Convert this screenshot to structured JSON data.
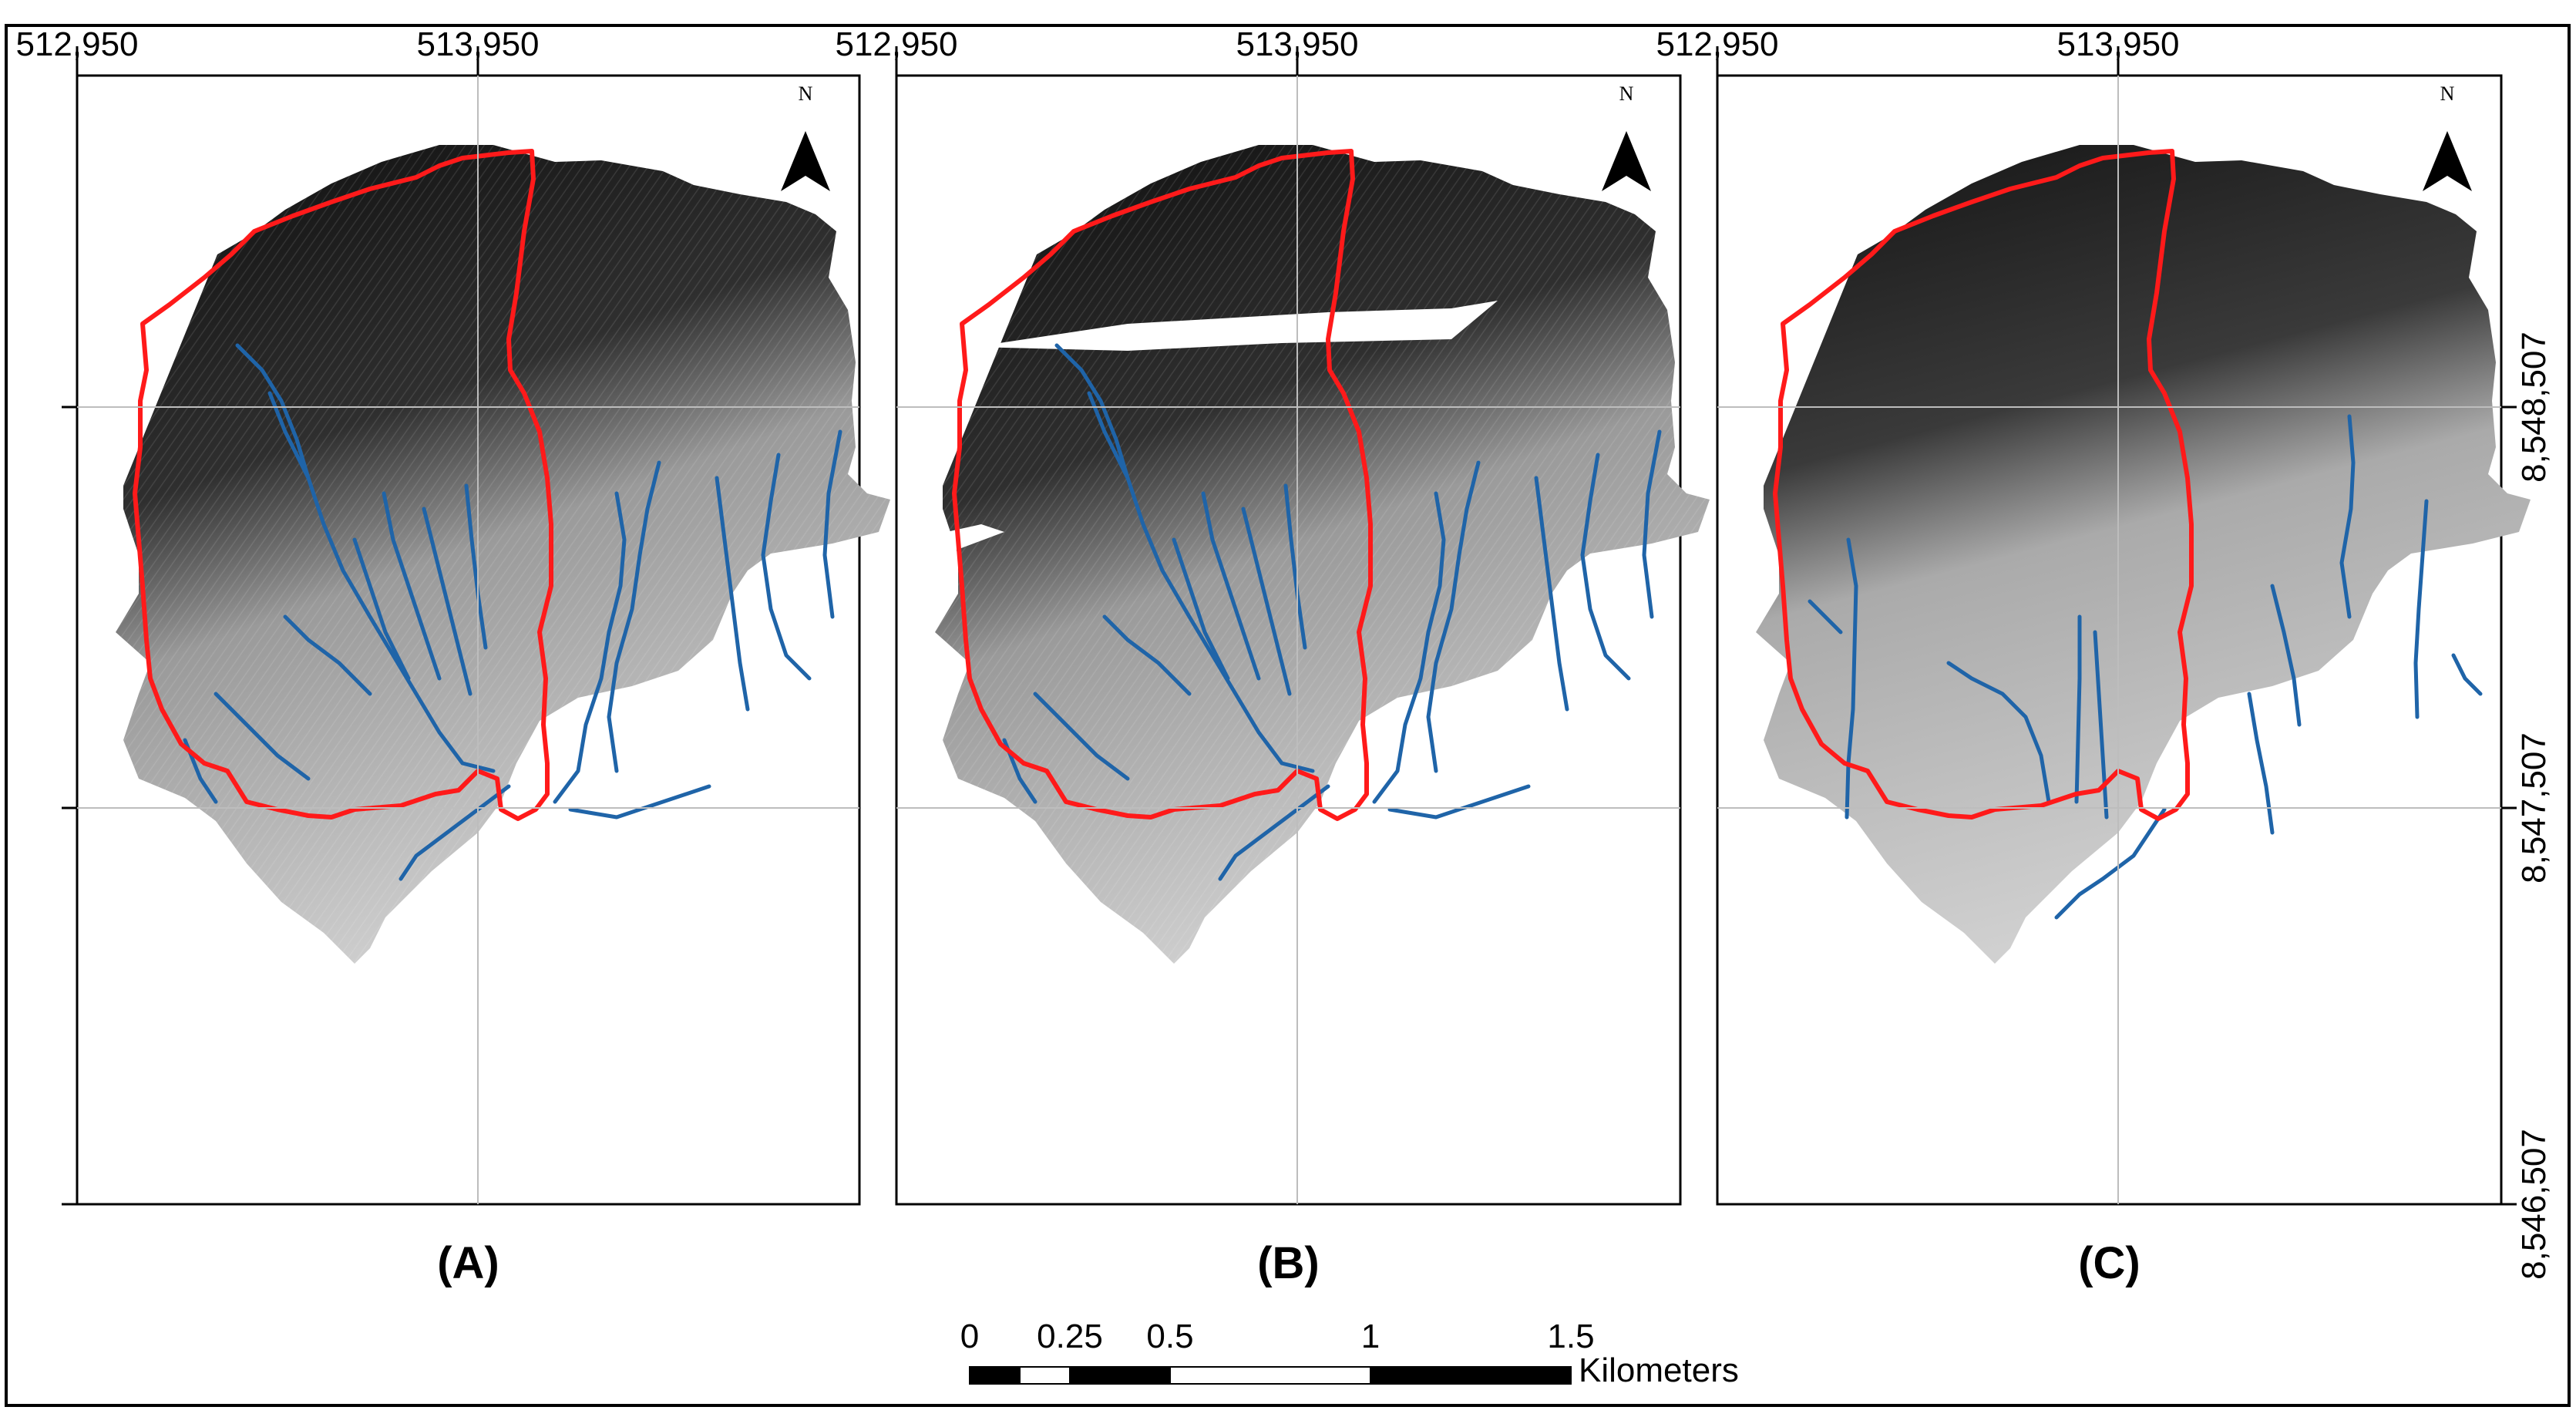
{
  "figure": {
    "top_x_labels": [
      "512,950",
      "513,950"
    ],
    "right_y_labels": [
      "8,548,507",
      "8,547,507",
      "8,546,507"
    ],
    "north_letter": "N",
    "panels": [
      {
        "id": "A",
        "label": "(A)"
      },
      {
        "id": "B",
        "label": "(B)"
      },
      {
        "id": "C",
        "label": "(C)"
      }
    ],
    "scale_bar": {
      "tick_labels": [
        "0",
        "0.25",
        "0.5",
        "1",
        "1.5"
      ],
      "unit": "Kilometers"
    },
    "colors": {
      "boundary": "#ff1a1a",
      "streams": "#1f64a8",
      "frame": "#000000",
      "grid": "#bdbdbd"
    }
  }
}
